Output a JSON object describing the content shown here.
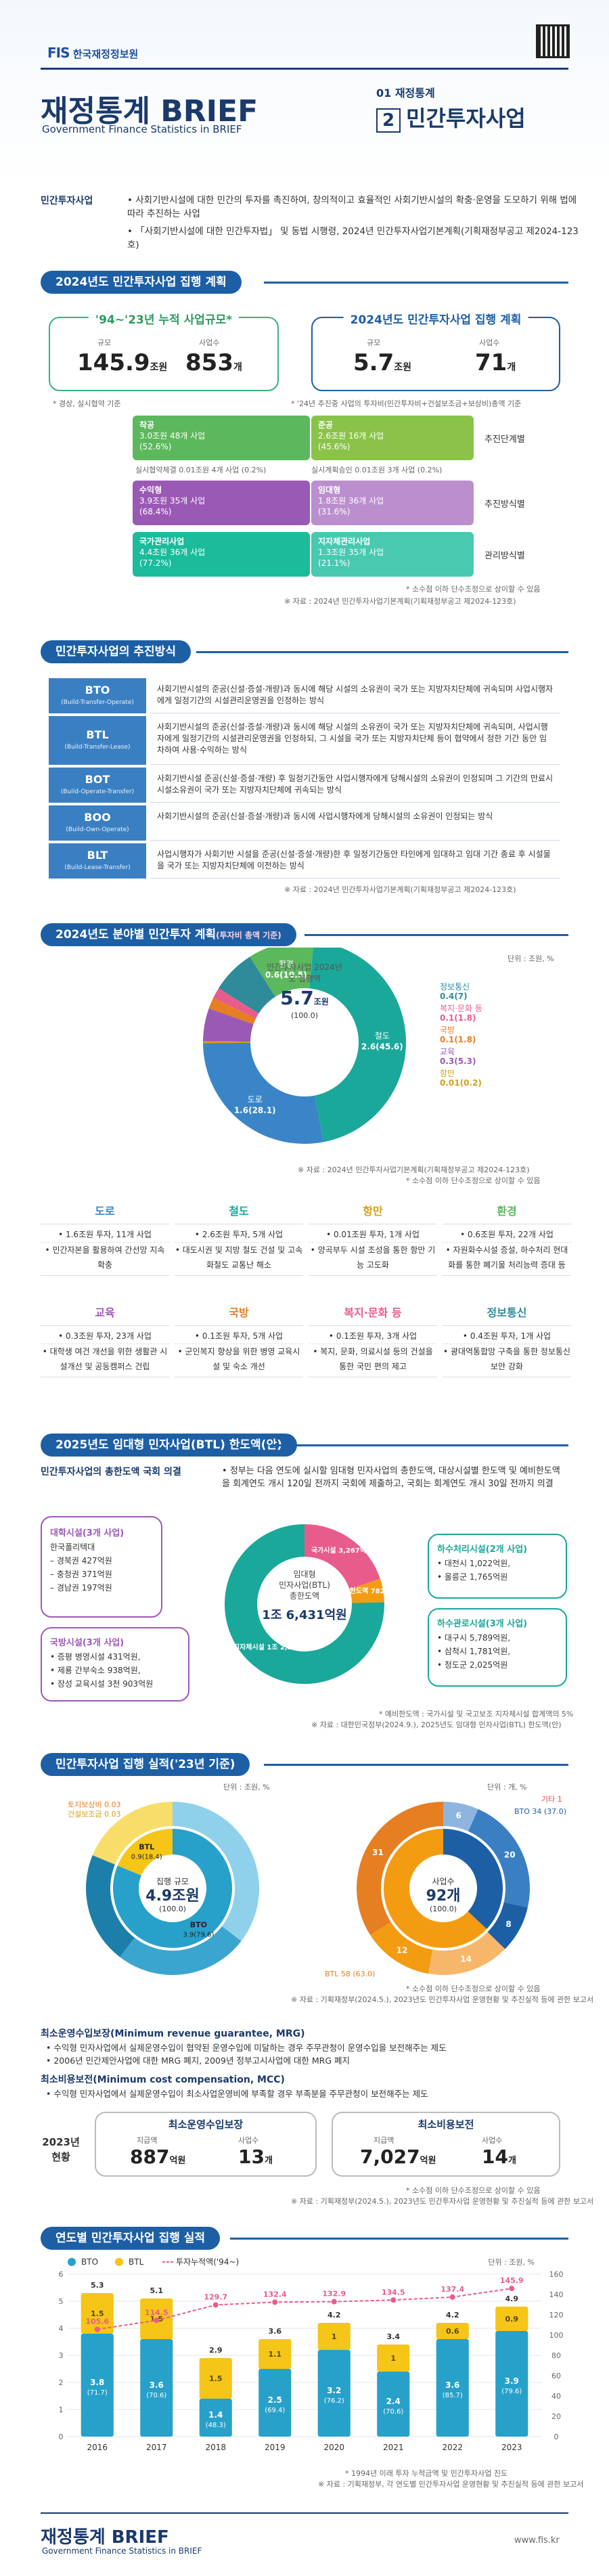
{
  "header": {
    "logo_mark": "FIS",
    "logo_name": "한국재정정보원",
    "title": "재정통계 BRIEF",
    "subtitle": "Government Finance Statistics in BRIEF",
    "issue": "01 재정통계",
    "issue_number": "2",
    "issue_title": "민간투자사업"
  },
  "intro": {
    "head": "민간투자사업",
    "text1": "사회기반시설에 대한 민간의 투자를 촉진하여, 창의적이고 효율적인 사회기반시설의 확충·운영을 도모하기 위해 법에 따라 추진하는 사업",
    "text2": "「사회기반시설에 대한 민간투자법」 및 동법 시행령, 2024년 민간투자사업기본계획(기획재정부공고 제2024-123호)"
  },
  "sec1": {
    "title": "2024년도 민간투자사업 집행 계획",
    "cum_title": "'94~'23년 누적 사업규모*",
    "cum_scale_label": "규모",
    "cum_scale": "145.9",
    "cum_scale_unit": "조원",
    "cum_count_label": "사업수",
    "cum_count": "853",
    "cum_count_unit": "개",
    "plan_title": "2024년도 민간투자사업 집행 계획",
    "plan_scale_label": "규모",
    "plan_scale": "5.7",
    "plan_scale_unit": "조원",
    "plan_count_label": "사업수",
    "plan_count": "71",
    "plan_count_unit": "개",
    "note_left": "* 경상, 실시협약 기준",
    "note_right": "* '24년 추진중 사업의 투자비(민간투자비+건설보조금+보상비)총액 기준",
    "bars": [
      {
        "a": "착공",
        "a_val": "3.0조원 48개 사업",
        "a_pct": "(52.6%)",
        "b": "준공",
        "b_val": "2.6조원 16개 사업",
        "b_pct": "(45.6%)",
        "label": "추진단계별",
        "colA": "#5cb85c",
        "colB": "#9ccc65"
      },
      {
        "a": "실시협약체결 0.01조원 4개 사업 (0.2%)",
        "b": "실시계획승인 0.01조원 3개 사업 (0.2%)"
      },
      {
        "a": "수익형",
        "a_val": "3.9조원 35개 사업",
        "a_pct": "(68.4%)",
        "b": "임대형",
        "b_val": "1.8조원 36개 사업",
        "b_pct": "(31.6%)",
        "label": "추진방식별",
        "colA": "#9b59b6",
        "colB": "#bb8fce"
      },
      {
        "a": "국가관리사업",
        "a_val": "4.4조원 36개 사업",
        "a_pct": "(77.2%)",
        "b": "지자체관리사업",
        "b_val": "1.3조원 35개 사업",
        "b_pct": "(21.1%)",
        "label": "관리방식별",
        "colA": "#1abc9c",
        "colB": "#48c9b0"
      }
    ],
    "note1": "* 소수점 이하 단수조정으로 상이할 수 있음",
    "note2": "※ 자료 : 2024년 민간투자사업기본계획(기획재정부공고 제2024-123호)"
  },
  "sec2": {
    "title": "민간투자사업의 추진방식",
    "rows": [
      {
        "key": "BTO",
        "sub": "(Build-Transfer-Operate)",
        "val": "사회기반시설의 준공(신설·증설·개량)과 동시에 해당 시설의 소유권이 국가 또는 지방자치단체에 귀속되며 사업시행자에게 일정기간의 시설관리운영권을 인정하는 방식"
      },
      {
        "key": "BTL",
        "sub": "(Build-Transfer-Lease)",
        "val": "사회기반시설의 준공(신설·증설·개량)과 동시에 해당 시설의 소유권이 국가 또는 지방자치단체에 귀속되며, 사업시행자에게 일정기간의 시설관리운영권을 인정하되, 그 시설을 국가 또는 지방자치단체 등이 협약에서 정한 기간 동안 임차하여 사용·수익하는 방식"
      },
      {
        "key": "BOT",
        "sub": "(Build-Operate-Transfer)",
        "val": "사회기반시설 준공(신설·증설·개량) 후 일정기간동안 사업시행자에게 당해시설의 소유권이 인정되며 그 기간의 만료시 시설소유권이 국가 또는 지방자치단체에 귀속되는 방식"
      },
      {
        "key": "BOO",
        "sub": "(Build-Own-Operate)",
        "val": "사회기반시설의 준공(신설·증설·개량)과 동시에 사업시행자에게 당해시설의 소유권이 인정되는 방식"
      },
      {
        "key": "BLT",
        "sub": "(Build-Lease-Transfer)",
        "val": "사업시행자가 사회기반 시설을 준공(신설·증설·개량)한 후 일정기간동안 타인에게 임대하고 임대 기간 종료 후 시설물을 국가 또는 지방자치단체에 이전하는 방식"
      }
    ],
    "note": "※ 자료 : 2024년 민간투자사업기본계획(기획재정부공고 제2024-123호)"
  },
  "sec3": {
    "title": "2024년도 분야별 민간투자 계획",
    "title_sub": "(투자비 총액 기준)",
    "unit": "단위 : 조원, %",
    "center_title": "민간투자사업 2024년도 집행액",
    "center_value": "5.7",
    "center_unit": "조원",
    "center_pct": "(100.0)",
    "note1": "※ 자료 : 2024년 민간투자사업기본계획(기획재정부공고 제2024-123호)",
    "note2": "* 소수점 이하 단수조정으로 상이할 수 있음",
    "cards": [
      {
        "name": "도로",
        "color": "#3a85c8",
        "items": [
          "1.6조원 투자, 11개 사업",
          "민간자본을 활용하여 간선망 지속 확충"
        ]
      },
      {
        "name": "철도",
        "color": "#1aa89a",
        "items": [
          "2.6조원 투자, 5개 사업",
          "대도시권 및 지방 철도 건설 및 고속화철도 교통난 해소"
        ]
      },
      {
        "name": "항만",
        "color": "#d4a017",
        "items": [
          "0.01조원 투자, 1개 사업",
          "양곡부두 시설 조성을 통한 항만 기능 고도화"
        ]
      },
      {
        "name": "환경",
        "color": "#5cb85c",
        "items": [
          "0.6조원 투자, 22개 사업",
          "자원화수시설 증설, 하수처리 현대화를 통한 폐기물 처리능력 증대 등"
        ]
      },
      {
        "name": "교육",
        "color": "#9b59b6",
        "items": [
          "0.3조원 투자, 23개 사업",
          "대학생 여건 개선을 위한 생활관 시설개선 및 공동캠퍼스 건립"
        ]
      },
      {
        "name": "국방",
        "color": "#e67e22",
        "items": [
          "0.1조원 투자, 5개 사업",
          "군인복지 향상을 위한 병영 교육시설 및 숙소 개선"
        ]
      },
      {
        "name": "복지·문화 등",
        "color": "#e85c8b",
        "items": [
          "0.1조원 투자, 3개 사업",
          "복지, 문화, 의료시설 등의 건설을 통한 국민 편의 제고"
        ]
      },
      {
        "name": "정보통신",
        "color": "#2e8b9a",
        "items": [
          "0.4조원 투자, 1개 사업",
          "광대역통합망 구축을 통한 정보통신 보안 강화"
        ]
      }
    ]
  },
  "sec4": {
    "title": "2025년도 임대형 민자사업(BTL) 한도액(안)",
    "head": "민간투자사업의 총한도액 국회 의결",
    "text": "정부는 다음 연도에 실시할 임대형 민자사업의 총한도액, 대상시설별 한도액 및 예비한도액을 회계연도 개시 120일 전까지 국회에 제출하고, 국회는 회계연도 개시 30일 전까지 의결",
    "left_title1": "대학시설(3개 사업)",
    "left_items1": [
      "한국폴리텍대",
      "– 경북권 427억원",
      "– 충청권 371억원",
      "– 경남권 197억원"
    ],
    "left_title2": "국방시설(3개 사업)",
    "left_items2": [
      "증평 병영시설 431억원,",
      "제룡 간부숙소 938억원,",
      "장성 교육시설 3천 903억원"
    ],
    "right_title1": "하수처리시설(2개 사업)",
    "right_items1": [
      "대전시 1,022억원,",
      "울릉군 1,765억원"
    ],
    "right_title2": "하수관로시설(3개 사업)",
    "right_items2": [
      "대구시 5,789억원,",
      "삼척시 1,781억원,",
      "청도군 2,025억원"
    ],
    "center1": "임대형",
    "center2": "민자사업(BTL)",
    "center3": "총한도액",
    "center_value": "1조 6,431억원",
    "seg1": "국가시설 3,267억원",
    "seg2": "예비한도액 782억원",
    "seg3": "국고보조 지자체시설 1조 2,382억원",
    "note1": "* 예비한도액 : 국가시설 및 국고보조 지자체시설 합계액의 5%",
    "note2": "※ 자료 : 대한민국정부(2024.9.), 2025년도 임대형 민자사업(BTL) 한도액(안)"
  },
  "sec5": {
    "title": "민간투자사업 집행 실적('23년 기준)",
    "unit_left": "단위 : 조원, %",
    "unit_right": "단위 : 개, %",
    "left_center": "집행 규모",
    "left_value": "4.9",
    "left_unit": "조원",
    "left_pct": "(100.0)",
    "right_center": "사업수",
    "right_value": "92",
    "right_unit": "개",
    "right_pct": "(100.0)",
    "left_labels": [
      "토지보상비 0.03",
      "건설보조금 0.03",
      "민간투자비 1.7",
      "BTO 3.9 (79.6)",
      "BTL 0.9 (18.4)",
      "민간투자비 0.9",
      "건설보조금 1.2",
      "토지보상비 1.0"
    ],
    "right_labels": [
      "준공 12",
      "착공 6",
      "운영중 20",
      "시공중 3",
      "준비중 8",
      "착공 11",
      "준공 14",
      "운영중 31"
    ],
    "right_bto": "BTO 34 (37.0)",
    "right_btl": "BTL 58 (63.0)",
    "right_etc": "기타 1",
    "note1": "* 소수점 이하 단수조정으로 상이할 수 있음",
    "note2": "※ 자료 : 기획재정부(2024.5.), 2023년도 민간투자사업 운영현황 및 추진실적 등에 관한 보고서"
  },
  "sec6": {
    "mrg_title": "최소운영수입보장(Minimum revenue guarantee, MRG)",
    "mrg_items": [
      "수익형 민자사업에서 실제운영수입이 협약된 운영수입에 미달하는 경우 주무관청이 운영수입을 보전해주는 제도",
      "2006년 민간제안사업에 대한 MRG 폐지, 2009년 정부고시사업에 대한 MRG 폐지"
    ],
    "mcc_title": "최소비용보전(Minimum cost compensation, MCC)",
    "mcc_items": [
      "수익형 민자사업에서 실제운영수입이 최소사업운영비에 부족할 경우 부족분을 주무관청이 보전해주는 제도"
    ],
    "side": "2023년 현황",
    "mrg_box_title": "최소운영수입보장",
    "mrg_amount_label": "지급액",
    "mrg_amount": "887",
    "mrg_amount_unit": "억원",
    "mrg_count_label": "사업수",
    "mrg_count": "13",
    "mrg_count_unit": "개",
    "mcc_box_title": "최소비용보전",
    "mcc_amount_label": "지급액",
    "mcc_amount": "7,027",
    "mcc_amount_unit": "억원",
    "mcc_count_label": "사업수",
    "mcc_count": "14",
    "mcc_count_unit": "개",
    "note1": "* 소수점 이하 단수조정으로 상이할 수 있음",
    "note2": "※ 자료 : 기획재정부(2024.5.), 2023년도 민간투자사업 운영현황 및 추진실적 등에 관한 보고서"
  },
  "sec7": {
    "title": "연도별 민간투자사업 집행 실적",
    "unit": "단위 : 조원, %",
    "note1": "* 1994년 이래 투자 누적금액 및 민간투자사업 진도",
    "note2": "※ 자료 : 기획재정부, 각 연도별 민간투자사업 운영현황 및 추진실적 등에 관한 보고서"
  },
  "footer": {
    "title": "재정통계 BRIEF",
    "subtitle": "Government Finance Statistics in BRIEF",
    "url": "www.fis.kr"
  },
  "colors": {
    "navy": "#1b3a6b",
    "blue": "#1d5fa5",
    "green": "#36b37e",
    "teal": "#1aa89a",
    "orange": "#f39c12",
    "yellow": "#f5c518"
  },
  "chart_data": [
    {
      "type": "pie",
      "title": "2024년도 분야별 민간투자 계획",
      "categories": [
        "도로",
        "철도",
        "환경",
        "정보통신",
        "복지·문화 등",
        "국방",
        "교육",
        "항만"
      ],
      "values": [
        1.6,
        2.6,
        0.6,
        0.4,
        0.1,
        0.1,
        0.3,
        0.01
      ],
      "percents": [
        28.1,
        45.6,
        10.5,
        7.0,
        1.8,
        1.8,
        5.3,
        0.2
      ],
      "colors": [
        "#3a85c8",
        "#1aa89a",
        "#5cb85c",
        "#2e8b9a",
        "#e85c8b",
        "#e67e22",
        "#9b59b6",
        "#d4a017"
      ]
    },
    {
      "type": "pie",
      "title": "2025년도 임대형 민자사업(BTL) 한도액(안)",
      "categories": [
        "국가시설",
        "예비한도액",
        "국고보조 지자체시설"
      ],
      "values": [
        3267,
        782,
        12382
      ],
      "unit": "억원",
      "colors": [
        "#e85c8b",
        "#f39c12",
        "#1aa89a"
      ]
    },
    {
      "type": "pie",
      "title": "집행 규모",
      "categories": [
        "BTO",
        "BTL"
      ],
      "values": [
        3.9,
        0.9
      ],
      "percents": [
        79.6,
        18.4
      ],
      "colors": [
        "#27a1c9",
        "#f5c518"
      ]
    },
    {
      "type": "pie",
      "title": "사업수",
      "categories": [
        "BTO",
        "BTL",
        "기타"
      ],
      "values": [
        34,
        58,
        1
      ],
      "percents": [
        37.0,
        63.0
      ],
      "colors": [
        "#1d5fa5",
        "#f39c12",
        "#e74c3c"
      ]
    },
    {
      "type": "bar",
      "title": "연도별 민간투자사업 집행 실적",
      "categories": [
        "2016",
        "2017",
        "2018",
        "2019",
        "2020",
        "2021",
        "2022",
        "2023"
      ],
      "series": [
        {
          "name": "BTO",
          "values": [
            3.8,
            3.6,
            1.4,
            2.5,
            3.2,
            2.4,
            3.6,
            3.9
          ],
          "pct": [
            71.7,
            70.6,
            48.3,
            69.4,
            76.2,
            70.6,
            85.7,
            79.6
          ],
          "color": "#27a1c9"
        },
        {
          "name": "BTL",
          "values": [
            1.5,
            1.5,
            1.5,
            1.1,
            1.0,
            1.0,
            0.6,
            0.9
          ],
          "pct": [
            28.3,
            29.4,
            51.7,
            30.6,
            23.8,
            29.4,
            14.3,
            18.4
          ],
          "color": "#f5c518"
        },
        {
          "name": "투자누적액('94~)",
          "values": [
            105.6,
            114.5,
            129.7,
            132.4,
            132.9,
            134.5,
            137.4,
            145.9
          ],
          "color": "#e85c8b",
          "axis": "right"
        }
      ],
      "totals": [
        5.3,
        5.1,
        2.9,
        3.6,
        4.2,
        3.4,
        4.2,
        4.9
      ],
      "ylim": [
        0,
        6
      ],
      "y2lim": [
        0,
        160
      ],
      "legend": "top-left"
    }
  ]
}
